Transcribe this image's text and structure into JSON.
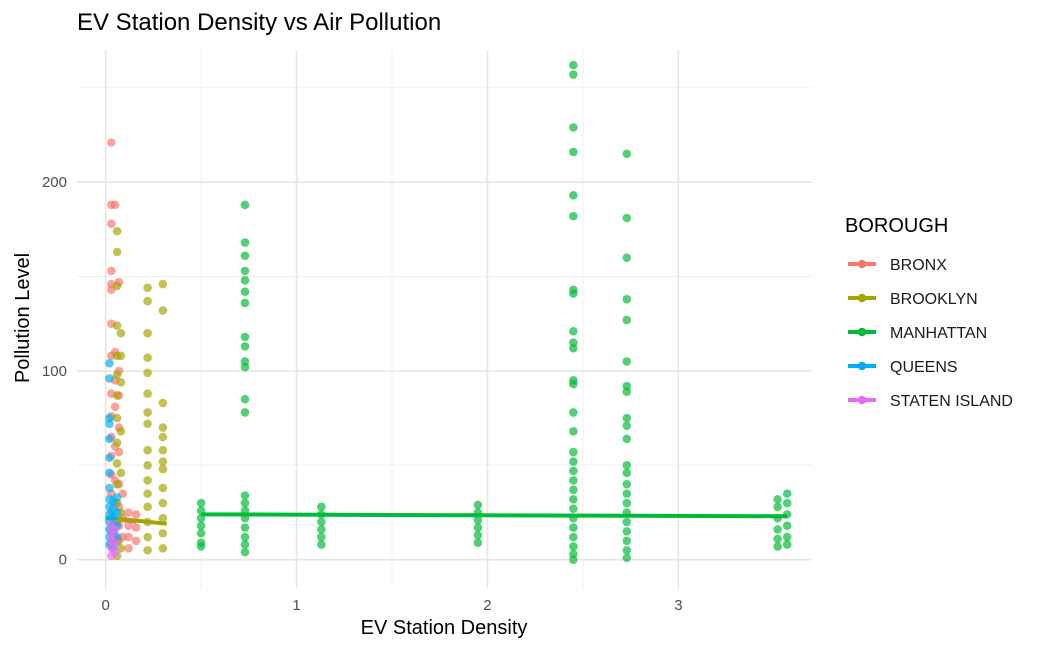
{
  "chart_data": {
    "type": "scatter",
    "title": "EV Station Density vs Air Pollution",
    "xlabel": "EV Station Density",
    "ylabel": "Pollution Level",
    "xlim": [
      -0.15,
      3.7
    ],
    "ylim": [
      -15,
      270
    ],
    "x_ticks": [
      0,
      1,
      2,
      3
    ],
    "y_ticks": [
      0,
      100,
      200
    ],
    "grid": true,
    "legend": {
      "title": "BOROUGH",
      "position": "right"
    },
    "series": [
      {
        "name": "BRONX",
        "color": "#F8766D",
        "points": [
          [
            0.03,
            221
          ],
          [
            0.03,
            188
          ],
          [
            0.03,
            178
          ],
          [
            0.03,
            153
          ],
          [
            0.03,
            146
          ],
          [
            0.03,
            143
          ],
          [
            0.03,
            125
          ],
          [
            0.03,
            108
          ],
          [
            0.03,
            88
          ],
          [
            0.03,
            76
          ],
          [
            0.03,
            65
          ],
          [
            0.03,
            55
          ],
          [
            0.03,
            45
          ],
          [
            0.03,
            35
          ],
          [
            0.03,
            25
          ],
          [
            0.03,
            15
          ],
          [
            0.03,
            8
          ],
          [
            0.05,
            188
          ],
          [
            0.05,
            110
          ],
          [
            0.05,
            95
          ],
          [
            0.05,
            81
          ],
          [
            0.05,
            60
          ],
          [
            0.05,
            42
          ],
          [
            0.05,
            30
          ],
          [
            0.05,
            20
          ],
          [
            0.05,
            12
          ],
          [
            0.07,
            147
          ],
          [
            0.07,
            100
          ],
          [
            0.07,
            87
          ],
          [
            0.07,
            70
          ],
          [
            0.07,
            57
          ],
          [
            0.07,
            40
          ],
          [
            0.07,
            28
          ],
          [
            0.07,
            18
          ],
          [
            0.07,
            10
          ],
          [
            0.09,
            35
          ],
          [
            0.09,
            22
          ],
          [
            0.09,
            12
          ],
          [
            0.12,
            25
          ],
          [
            0.12,
            18
          ],
          [
            0.12,
            12
          ],
          [
            0.12,
            6
          ],
          [
            0.16,
            24
          ],
          [
            0.16,
            17
          ],
          [
            0.16,
            10
          ]
        ],
        "trend": [
          [
            0.0,
            22
          ],
          [
            0.16,
            20
          ]
        ]
      },
      {
        "name": "BROOKLYN",
        "color": "#A3A500",
        "points": [
          [
            0.06,
            174
          ],
          [
            0.06,
            163
          ],
          [
            0.06,
            145
          ],
          [
            0.06,
            124
          ],
          [
            0.06,
            108
          ],
          [
            0.06,
            98
          ],
          [
            0.06,
            87
          ],
          [
            0.06,
            75
          ],
          [
            0.06,
            62
          ],
          [
            0.06,
            51
          ],
          [
            0.06,
            40
          ],
          [
            0.06,
            30
          ],
          [
            0.06,
            20
          ],
          [
            0.06,
            10
          ],
          [
            0.06,
            2
          ],
          [
            0.08,
            120
          ],
          [
            0.08,
            108
          ],
          [
            0.08,
            94
          ],
          [
            0.08,
            68
          ],
          [
            0.08,
            46
          ],
          [
            0.08,
            25
          ],
          [
            0.08,
            6
          ],
          [
            0.22,
            144
          ],
          [
            0.22,
            137
          ],
          [
            0.22,
            120
          ],
          [
            0.22,
            107
          ],
          [
            0.22,
            99
          ],
          [
            0.22,
            88
          ],
          [
            0.22,
            78
          ],
          [
            0.22,
            72
          ],
          [
            0.22,
            58
          ],
          [
            0.22,
            50
          ],
          [
            0.22,
            42
          ],
          [
            0.22,
            35
          ],
          [
            0.22,
            28
          ],
          [
            0.22,
            20
          ],
          [
            0.22,
            12
          ],
          [
            0.22,
            5
          ],
          [
            0.3,
            146
          ],
          [
            0.3,
            132
          ],
          [
            0.3,
            83
          ],
          [
            0.3,
            70
          ],
          [
            0.3,
            65
          ],
          [
            0.3,
            58
          ],
          [
            0.3,
            52
          ],
          [
            0.3,
            48
          ],
          [
            0.3,
            38
          ],
          [
            0.3,
            30
          ],
          [
            0.3,
            22
          ],
          [
            0.3,
            14
          ],
          [
            0.3,
            6
          ]
        ],
        "trend": [
          [
            0.04,
            22
          ],
          [
            0.32,
            19
          ]
        ]
      },
      {
        "name": "MANHATTAN",
        "color": "#00BA38",
        "points": [
          [
            0.5,
            30
          ],
          [
            0.5,
            26
          ],
          [
            0.5,
            22
          ],
          [
            0.5,
            18
          ],
          [
            0.5,
            14
          ],
          [
            0.5,
            9
          ],
          [
            0.5,
            7
          ],
          [
            0.73,
            188
          ],
          [
            0.73,
            168
          ],
          [
            0.73,
            161
          ],
          [
            0.73,
            153
          ],
          [
            0.73,
            148
          ],
          [
            0.73,
            142
          ],
          [
            0.73,
            136
          ],
          [
            0.73,
            118
          ],
          [
            0.73,
            113
          ],
          [
            0.73,
            105
          ],
          [
            0.73,
            102
          ],
          [
            0.73,
            85
          ],
          [
            0.73,
            78
          ],
          [
            0.73,
            34
          ],
          [
            0.73,
            30
          ],
          [
            0.73,
            26
          ],
          [
            0.73,
            22
          ],
          [
            0.73,
            17
          ],
          [
            0.73,
            12
          ],
          [
            0.73,
            8
          ],
          [
            0.73,
            4
          ],
          [
            1.13,
            28
          ],
          [
            1.13,
            24
          ],
          [
            1.13,
            20
          ],
          [
            1.13,
            16
          ],
          [
            1.13,
            12
          ],
          [
            1.13,
            8
          ],
          [
            1.95,
            29
          ],
          [
            1.95,
            25
          ],
          [
            1.95,
            21
          ],
          [
            1.95,
            17
          ],
          [
            1.95,
            13
          ],
          [
            1.95,
            9
          ],
          [
            2.45,
            262
          ],
          [
            2.45,
            257
          ],
          [
            2.45,
            229
          ],
          [
            2.45,
            216
          ],
          [
            2.45,
            193
          ],
          [
            2.45,
            182
          ],
          [
            2.45,
            143
          ],
          [
            2.45,
            141
          ],
          [
            2.45,
            121
          ],
          [
            2.45,
            115
          ],
          [
            2.45,
            112
          ],
          [
            2.45,
            95
          ],
          [
            2.45,
            93
          ],
          [
            2.45,
            78
          ],
          [
            2.45,
            68
          ],
          [
            2.45,
            57
          ],
          [
            2.45,
            52
          ],
          [
            2.45,
            47
          ],
          [
            2.45,
            42
          ],
          [
            2.45,
            37
          ],
          [
            2.45,
            32
          ],
          [
            2.45,
            27
          ],
          [
            2.45,
            22
          ],
          [
            2.45,
            17
          ],
          [
            2.45,
            12
          ],
          [
            2.45,
            7
          ],
          [
            2.45,
            3
          ],
          [
            2.45,
            0
          ],
          [
            2.73,
            215
          ],
          [
            2.73,
            181
          ],
          [
            2.73,
            160
          ],
          [
            2.73,
            138
          ],
          [
            2.73,
            127
          ],
          [
            2.73,
            105
          ],
          [
            2.73,
            92
          ],
          [
            2.73,
            89
          ],
          [
            2.73,
            75
          ],
          [
            2.73,
            71
          ],
          [
            2.73,
            64
          ],
          [
            2.73,
            50
          ],
          [
            2.73,
            46
          ],
          [
            2.73,
            40
          ],
          [
            2.73,
            35
          ],
          [
            2.73,
            30
          ],
          [
            2.73,
            25
          ],
          [
            2.73,
            20
          ],
          [
            2.73,
            15
          ],
          [
            2.73,
            10
          ],
          [
            2.73,
            5
          ],
          [
            2.73,
            1
          ],
          [
            3.52,
            32
          ],
          [
            3.52,
            28
          ],
          [
            3.52,
            22
          ],
          [
            3.52,
            16
          ],
          [
            3.52,
            11
          ],
          [
            3.52,
            7
          ],
          [
            3.57,
            35
          ],
          [
            3.57,
            30
          ],
          [
            3.57,
            24
          ],
          [
            3.57,
            18
          ],
          [
            3.57,
            12
          ],
          [
            3.57,
            8
          ]
        ],
        "trend": [
          [
            0.5,
            24
          ],
          [
            3.57,
            23
          ]
        ]
      },
      {
        "name": "QUEENS",
        "color": "#00B0F6",
        "points": [
          [
            0.02,
            104
          ],
          [
            0.02,
            96
          ],
          [
            0.02,
            75
          ],
          [
            0.02,
            72
          ],
          [
            0.02,
            64
          ],
          [
            0.02,
            54
          ],
          [
            0.02,
            46
          ],
          [
            0.02,
            38
          ],
          [
            0.02,
            32
          ],
          [
            0.02,
            28
          ],
          [
            0.02,
            24
          ],
          [
            0.02,
            20
          ],
          [
            0.02,
            16
          ],
          [
            0.02,
            12
          ],
          [
            0.02,
            8
          ],
          [
            0.04,
            31
          ],
          [
            0.04,
            27
          ],
          [
            0.04,
            23
          ],
          [
            0.04,
            19
          ],
          [
            0.04,
            15
          ],
          [
            0.04,
            11
          ],
          [
            0.04,
            6
          ],
          [
            0.06,
            33
          ],
          [
            0.06,
            25
          ],
          [
            0.06,
            18
          ],
          [
            0.06,
            12
          ]
        ],
        "trend": [
          [
            0.0,
            22
          ],
          [
            0.06,
            22
          ]
        ]
      },
      {
        "name": "STATEN ISLAND",
        "color": "#E76BF3",
        "points": [
          [
            0.03,
            18
          ],
          [
            0.03,
            14
          ],
          [
            0.03,
            10
          ],
          [
            0.03,
            6
          ],
          [
            0.03,
            2
          ],
          [
            0.05,
            16
          ],
          [
            0.05,
            9
          ],
          [
            0.05,
            4
          ]
        ],
        "trend": [
          [
            0.02,
            12
          ],
          [
            0.05,
            12
          ]
        ]
      }
    ]
  }
}
